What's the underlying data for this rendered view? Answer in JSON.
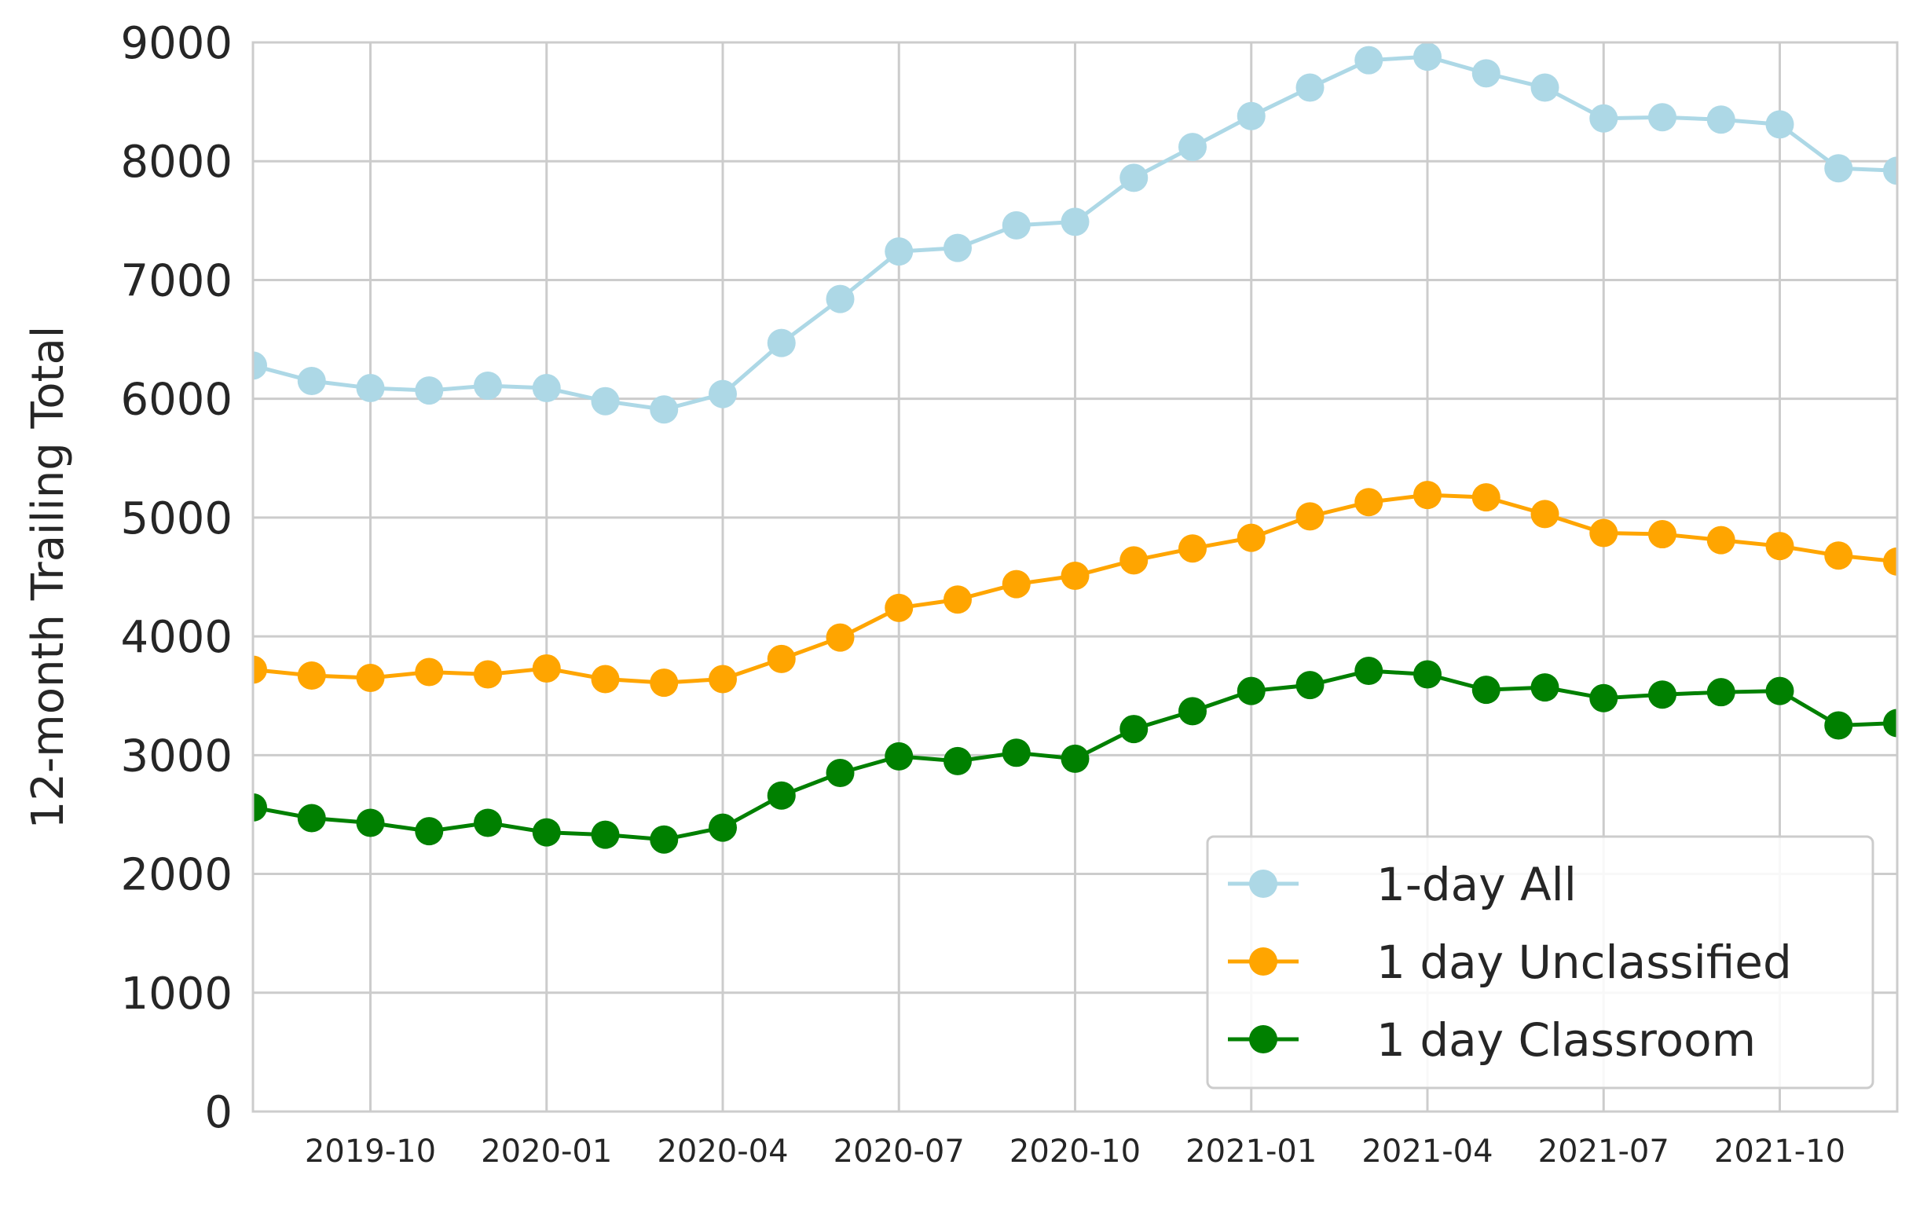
{
  "chart_data": {
    "type": "line",
    "title": "",
    "xlabel": "",
    "ylabel": "12-month Trailing Total",
    "ylim": [
      0,
      9000
    ],
    "xlim": [
      "2019-08",
      "2021-12"
    ],
    "yticks": [
      "0",
      "1000",
      "2000",
      "3000",
      "4000",
      "5000",
      "6000",
      "7000",
      "8000",
      "9000"
    ],
    "xticks": [
      "2019-10",
      "2020-01",
      "2020-04",
      "2020-07",
      "2020-10",
      "2021-01",
      "2021-04",
      "2021-07",
      "2021-10"
    ],
    "grid": true,
    "legend_position": "bottom-right",
    "x": [
      "2019-08",
      "2019-09",
      "2019-10",
      "2019-11",
      "2019-12",
      "2020-01",
      "2020-02",
      "2020-03",
      "2020-04",
      "2020-05",
      "2020-06",
      "2020-07",
      "2020-08",
      "2020-09",
      "2020-10",
      "2020-11",
      "2020-12",
      "2021-01",
      "2021-02",
      "2021-03",
      "2021-04",
      "2021-05",
      "2021-06",
      "2021-07",
      "2021-08",
      "2021-09",
      "2021-10",
      "2021-11",
      "2021-12"
    ],
    "series": [
      {
        "name": "1-day All",
        "color": "#add8e6",
        "values": [
          6280,
          6150,
          6090,
          6070,
          6110,
          6090,
          5980,
          5910,
          6040,
          6470,
          6840,
          7240,
          7270,
          7460,
          7490,
          7860,
          8120,
          8380,
          8620,
          8850,
          8880,
          8740,
          8620,
          8360,
          8370,
          8350,
          8310,
          7940,
          7920
        ]
      },
      {
        "name": "1 day Unclassified",
        "color": "#ffa500",
        "values": [
          3720,
          3670,
          3650,
          3700,
          3680,
          3730,
          3640,
          3610,
          3640,
          3810,
          3990,
          4240,
          4310,
          4440,
          4510,
          4640,
          4740,
          4830,
          5010,
          5130,
          5190,
          5170,
          5030,
          4870,
          4860,
          4810,
          4760,
          4680,
          4630
        ]
      },
      {
        "name": "1 day Classroom",
        "color": "#008000",
        "values": [
          2560,
          2470,
          2430,
          2360,
          2430,
          2350,
          2330,
          2290,
          2390,
          2660,
          2850,
          2990,
          2950,
          3020,
          2970,
          3220,
          3370,
          3540,
          3590,
          3710,
          3680,
          3550,
          3570,
          3480,
          3510,
          3530,
          3540,
          3250,
          3270
        ]
      }
    ]
  }
}
